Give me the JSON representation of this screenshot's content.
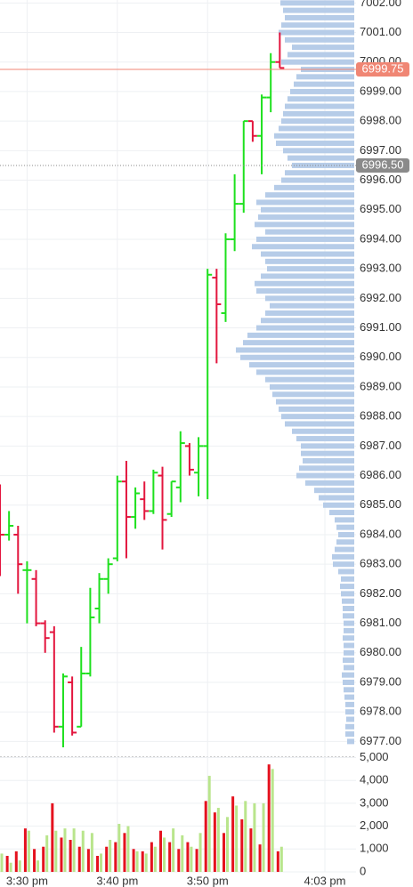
{
  "chart_data": [
    {
      "type": "ohlc",
      "x": [
        27,
        28,
        29,
        30,
        31,
        32,
        33,
        34,
        35,
        36,
        37,
        38,
        39,
        40,
        41,
        42,
        43,
        44,
        45,
        46,
        47,
        48,
        49,
        50,
        51,
        52,
        53,
        54,
        55,
        56,
        57,
        58
      ],
      "open": [
        6984.8,
        6984.0,
        6984.0,
        6982.8,
        6982.5,
        6981.0,
        6980.7,
        6977.5,
        6979.0,
        6977.5,
        6979.3,
        6981.5,
        6982.5,
        6983.2,
        6985.8,
        6984.6,
        6985.2,
        6984.8,
        6986.0,
        6984.7,
        6985.6,
        6987.0,
        6986.1,
        6987.0,
        6992.7,
        6991.5,
        6994.0,
        6995.2,
        6998.0,
        6997.5,
        6998.8,
        7000.0
      ],
      "high": [
        6985.7,
        6984.8,
        6984.3,
        6983.1,
        6982.8,
        6981.1,
        6980.9,
        6979.3,
        6979.2,
        6980.2,
        6982.2,
        6982.7,
        6983.2,
        6986.0,
        6986.5,
        6985.6,
        6985.8,
        6986.2,
        6986.3,
        6985.8,
        6987.5,
        6987.1,
        6987.3,
        6993.0,
        6993.0,
        6994.2,
        6996.2,
        6998.0,
        6998.0,
        6998.9,
        7000.3,
        7001.0
      ],
      "low": [
        6982.6,
        6983.8,
        6982.0,
        6981.0,
        6980.9,
        6980.0,
        6977.3,
        6976.8,
        6977.2,
        6977.5,
        6979.2,
        6981.0,
        6982.0,
        6983.1,
        6983.2,
        6984.2,
        6984.5,
        6984.7,
        6983.5,
        6984.6,
        6985.1,
        6986.0,
        6985.3,
        6985.2,
        6989.8,
        6991.2,
        6993.6,
        6994.9,
        6997.3,
        6996.2,
        6998.3,
        6999.8
      ],
      "close": [
        6984.0,
        6984.3,
        6983.0,
        6982.8,
        6981.0,
        6980.5,
        6977.5,
        6979.2,
        6977.3,
        6979.3,
        6981.2,
        6982.5,
        6983.0,
        6985.8,
        6984.6,
        6985.4,
        6984.8,
        6986.1,
        6984.5,
        6985.8,
        6987.1,
        6986.2,
        6987.0,
        6992.8,
        6991.8,
        6994.0,
        6995.2,
        6998.0,
        6997.5,
        6998.8,
        7000.0,
        6999.8
      ],
      "up_color": "#1ee01e",
      "down_color": "#e3163e",
      "ylim": [
        6976.5,
        7002.1
      ],
      "yticks": [
        {
          "value": 6977,
          "label": "6977.00"
        },
        {
          "value": 6978,
          "label": "6978.00"
        },
        {
          "value": 6979,
          "label": "6979.00"
        },
        {
          "value": 6980,
          "label": "6980.00"
        },
        {
          "value": 6981,
          "label": "6981.00"
        },
        {
          "value": 6982,
          "label": "6982.00"
        },
        {
          "value": 6983,
          "label": "6983.00"
        },
        {
          "value": 6984,
          "label": "6984.00"
        },
        {
          "value": 6985,
          "label": "6985.00"
        },
        {
          "value": 6986,
          "label": "6986.00"
        },
        {
          "value": 6987,
          "label": "6987.00"
        },
        {
          "value": 6988,
          "label": "6988.00"
        },
        {
          "value": 6989,
          "label": "6989.00"
        },
        {
          "value": 6990,
          "label": "6990.00"
        },
        {
          "value": 6991,
          "label": "6991.00"
        },
        {
          "value": 6992,
          "label": "6992.00"
        },
        {
          "value": 6993,
          "label": "6993.00"
        },
        {
          "value": 6994,
          "label": "6994.00"
        },
        {
          "value": 6995,
          "label": "6995.00"
        },
        {
          "value": 6996,
          "label": "6996.00"
        },
        {
          "value": 6997,
          "label": "6997.00"
        },
        {
          "value": 6998,
          "label": "6998.00"
        },
        {
          "value": 6999,
          "label": "6999.00"
        },
        {
          "value": 7000,
          "label": "7000.00"
        },
        {
          "value": 7001,
          "label": "7001.00"
        },
        {
          "value": 7002,
          "label": "7002.00"
        }
      ],
      "grid": true,
      "profile": {
        "color": "#b6cce8",
        "prices": [
          7002,
          7001.75,
          7001.5,
          7001.25,
          7001,
          7000.75,
          7000.5,
          7000.25,
          7000,
          6999.75,
          6999.5,
          6999.25,
          6999,
          6998.75,
          6998.5,
          6998.25,
          6998,
          6997.75,
          6997.5,
          6997.25,
          6997,
          6996.75,
          6996.5,
          6996.25,
          6996,
          6995.75,
          6995.5,
          6995.25,
          6995,
          6994.75,
          6994.5,
          6994.25,
          6994,
          6993.75,
          6993.5,
          6993.25,
          6993,
          6992.75,
          6992.5,
          6992.25,
          6992,
          6991.75,
          6991.5,
          6991.25,
          6991,
          6990.75,
          6990.5,
          6990.25,
          6990,
          6989.75,
          6989.5,
          6989.25,
          6989,
          6988.75,
          6988.5,
          6988.25,
          6988,
          6987.75,
          6987.5,
          6987.25,
          6987,
          6986.75,
          6986.5,
          6986.25,
          6986,
          6985.75,
          6985.5,
          6985.25,
          6985,
          6984.75,
          6984.5,
          6984.25,
          6984,
          6983.75,
          6983.5,
          6983.25,
          6983,
          6982.75,
          6982.5,
          6982.25,
          6982,
          6981.75,
          6981.5,
          6981.25,
          6981,
          6980.75,
          6980.5,
          6980.25,
          6980,
          6979.75,
          6979.5,
          6979.25,
          6979,
          6978.75,
          6978.5,
          6978.25,
          6978,
          6977.75,
          6977.5,
          6977.25,
          6977
        ],
        "values": [
          83,
          80,
          78,
          82,
          85,
          78,
          70,
          75,
          82,
          60,
          65,
          68,
          72,
          75,
          78,
          80,
          82,
          85,
          90,
          88,
          80,
          75,
          70,
          78,
          82,
          90,
          100,
          110,
          105,
          108,
          112,
          100,
          110,
          115,
          105,
          100,
          98,
          105,
          112,
          110,
          100,
          95,
          100,
          105,
          110,
          120,
          125,
          133,
          128,
          118,
          110,
          100,
          95,
          92,
          88,
          85,
          82,
          78,
          70,
          65,
          60,
          60,
          58,
          62,
          65,
          55,
          45,
          40,
          35,
          28,
          22,
          20,
          18,
          20,
          22,
          25,
          24,
          18,
          15,
          16,
          15,
          14,
          13,
          13,
          12,
          12,
          13,
          12,
          12,
          13,
          12,
          14,
          13,
          12,
          11,
          10,
          10,
          9,
          10,
          10,
          8
        ]
      },
      "last_price": {
        "value": 6999.75,
        "color": "#f08674"
      },
      "marker_price": {
        "value": 6996.5,
        "label": "6996.50",
        "color": "#8a8a8a"
      }
    },
    {
      "type": "bar",
      "x": [
        27,
        28,
        29,
        30,
        31,
        32,
        33,
        34,
        35,
        36,
        37,
        38,
        39,
        40,
        41,
        42,
        43,
        44,
        45,
        46,
        47,
        48,
        49,
        50,
        51,
        52,
        53,
        54,
        55,
        56,
        57,
        58
      ],
      "series": [
        {
          "color": "#e5121e",
          "values": [
            1500,
            700,
            900,
            1900,
            1000,
            1100,
            3000,
            1500,
            1400,
            1100,
            1000,
            700,
            1100,
            1300,
            1700,
            1000,
            900,
            1300,
            1800,
            1300,
            1000,
            1300,
            1000,
            3100,
            2600,
            1700,
            3300,
            2300,
            1900,
            1200,
            4700,
            900
          ]
        },
        {
          "color": "#b9e58c",
          "values": [
            800,
            400,
            500,
            1800,
            500,
            1600,
            1800,
            1900,
            1900,
            1800,
            1700,
            800,
            1400,
            2100,
            2000,
            900,
            800,
            1100,
            1500,
            1900,
            1600,
            1100,
            1700,
            4200,
            2800,
            2400,
            2900,
            3100,
            3000,
            3000,
            4500,
            1100
          ]
        }
      ],
      "ylim": [
        0,
        5000
      ],
      "yticks": [
        0,
        {
          "value": 1000,
          "label": "1,000"
        },
        {
          "value": 2000,
          "label": "2,000"
        },
        {
          "value": 3000,
          "label": "3,000"
        },
        {
          "value": 4000,
          "label": "4,000"
        },
        {
          "value": 5000,
          "label": "5,000"
        }
      ],
      "xlim": [
        27,
        66.45
      ],
      "xticks": [
        {
          "value": 30,
          "label": "3:30 pm"
        },
        {
          "value": 40,
          "label": "3:40 pm"
        },
        {
          "value": 50,
          "label": "3:50 pm"
        },
        {
          "value": 63,
          "label": "4:03 pm"
        }
      ],
      "grid": true
    }
  ]
}
